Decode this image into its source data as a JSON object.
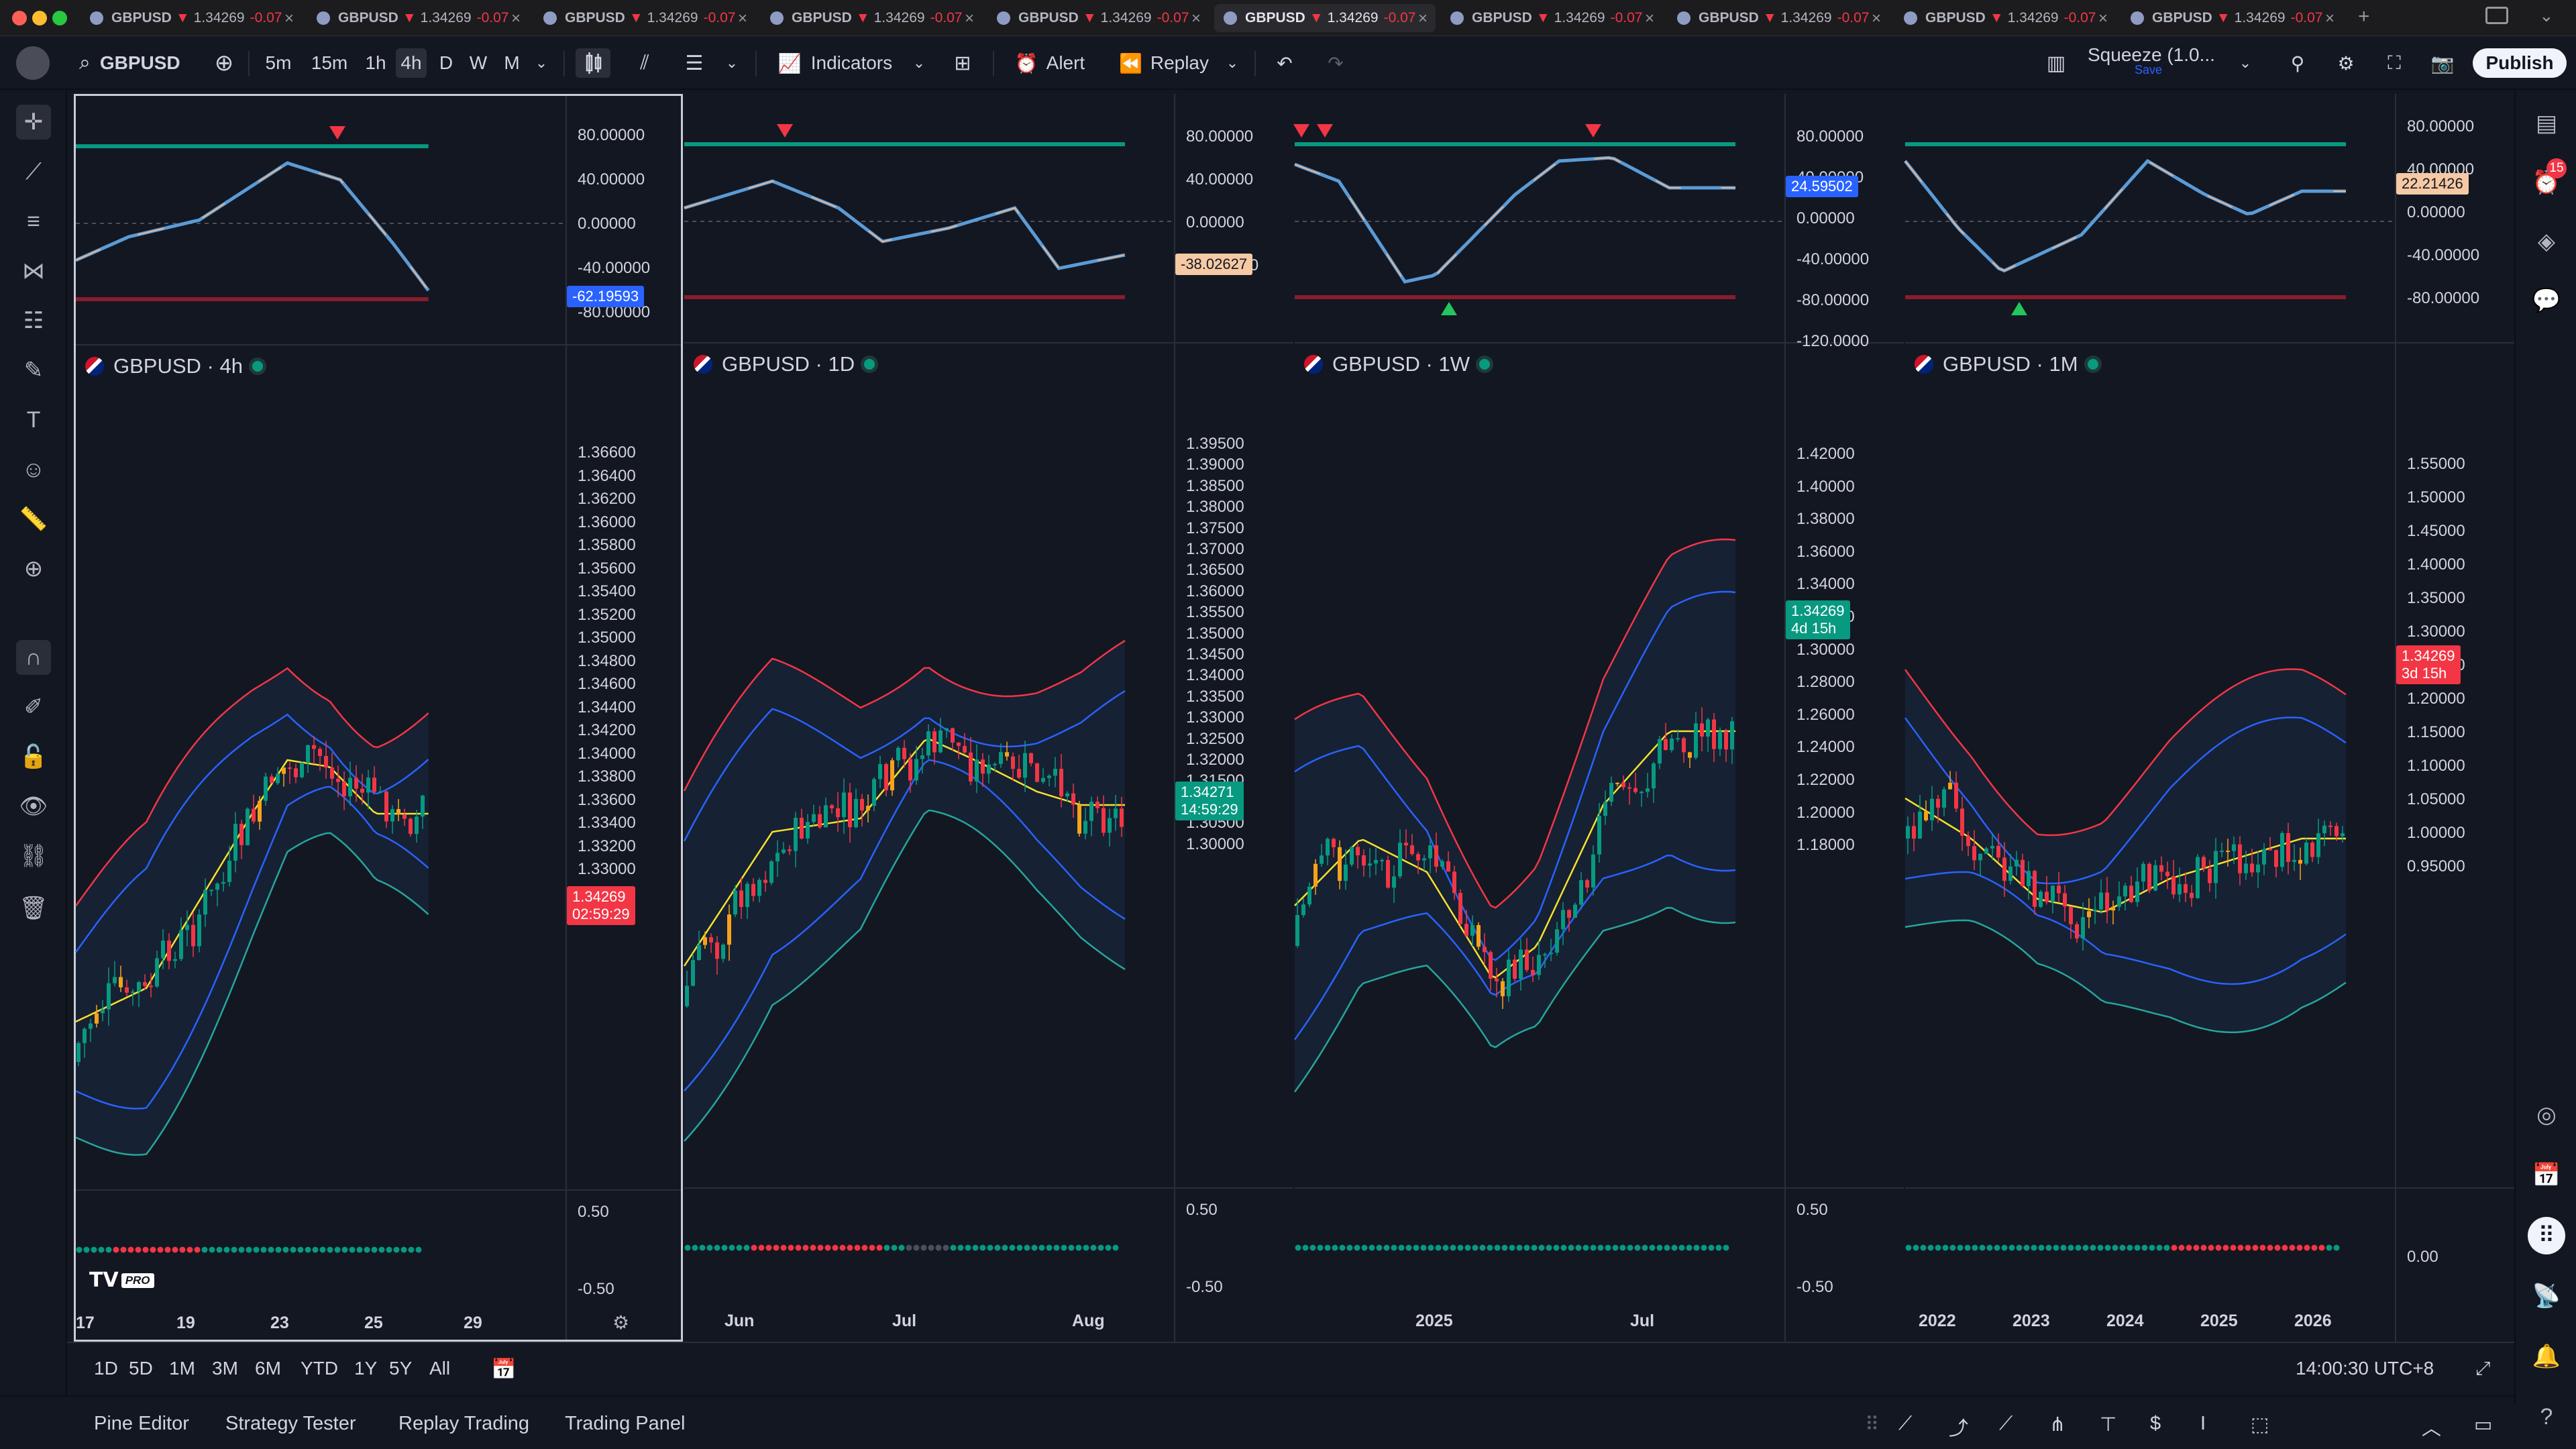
{
  "tabs": [
    {
      "symbol": "GBPUSD",
      "price": "1.34269",
      "change": "-0.07"
    },
    {
      "symbol": "GBPUSD",
      "price": "1.34269",
      "change": "-0.07"
    },
    {
      "symbol": "GBPUSD",
      "price": "1.34269",
      "change": "-0.07"
    },
    {
      "symbol": "GBPUSD",
      "price": "1.34269",
      "change": "-0.07"
    },
    {
      "symbol": "GBPUSD",
      "price": "1.34269",
      "change": "-0.07"
    },
    {
      "symbol": "GBPUSD",
      "price": "1.34269",
      "change": "-0.07"
    },
    {
      "symbol": "GBPUSD",
      "price": "1.34269",
      "change": "-0.07"
    },
    {
      "symbol": "GBPUSD",
      "price": "1.34269",
      "change": "-0.07"
    },
    {
      "symbol": "GBPUSD",
      "price": "1.34269",
      "change": "-0.07"
    },
    {
      "symbol": "GBPUSD",
      "price": "1.34269",
      "change": "-0.07"
    }
  ],
  "toolbar": {
    "symbol": "GBPUSD",
    "intervals": [
      "5m",
      "15m",
      "1h",
      "4h",
      "D",
      "W",
      "M"
    ],
    "active_interval": "4h",
    "indicators_label": "Indicators",
    "alert_label": "Alert",
    "replay_label": "Replay",
    "layout_name": "Squeeze (1.0...",
    "layout_sub": "Save",
    "publish_label": "Publish"
  },
  "rightbar": {
    "notif_count": "15"
  },
  "panes": [
    {
      "title": "GBPUSD · 4h",
      "osc_ticks": [
        "80.00000",
        "40.00000",
        "0.00000",
        "-40.00000",
        "-80.00000"
      ],
      "osc_tag": "-62.19593",
      "price_ticks": [
        "1.36600",
        "1.36400",
        "1.36200",
        "1.36000",
        "1.35800",
        "1.35600",
        "1.35400",
        "1.35200",
        "1.35000",
        "1.34800",
        "1.34600",
        "1.34400",
        "1.34200",
        "1.34000",
        "1.33800",
        "1.33600",
        "1.33400",
        "1.33200",
        "1.33000"
      ],
      "price_tag": "1.34269",
      "price_tag2": "02:59:29",
      "mom_ticks": [
        "0.50",
        "-0.50"
      ],
      "x_labels": [
        "17",
        "19",
        "23",
        "25",
        "29"
      ]
    },
    {
      "title": "GBPUSD · 1D",
      "osc_ticks": [
        "80.00000",
        "40.00000",
        "0.00000",
        "-80.00000"
      ],
      "osc_tag": "-38.02627",
      "price_ticks": [
        "1.39500",
        "1.39000",
        "1.38500",
        "1.38000",
        "1.37500",
        "1.37000",
        "1.36500",
        "1.36000",
        "1.35500",
        "1.35000",
        "1.34500",
        "1.34000",
        "1.33500",
        "1.33000",
        "1.32500",
        "1.32000",
        "1.31500",
        "1.31000",
        "1.30500",
        "1.30000"
      ],
      "price_tag": "1.34271",
      "price_tag2": "14:59:29",
      "mom_ticks": [
        "0.50",
        "-0.50"
      ],
      "x_labels": [
        "Jun",
        "Jul",
        "Aug"
      ]
    },
    {
      "title": "GBPUSD · 1W",
      "osc_ticks": [
        "80.00000",
        "40.00000",
        "0.00000",
        "-40.00000",
        "-80.00000",
        "-120.0000"
      ],
      "osc_tag": "24.59502",
      "price_ticks": [
        "1.42000",
        "1.40000",
        "1.38000",
        "1.36000",
        "1.34000",
        "1.32000",
        "1.30000",
        "1.28000",
        "1.26000",
        "1.24000",
        "1.22000",
        "1.20000",
        "1.18000"
      ],
      "price_tag": "1.34269",
      "price_tag2": "4d 15h",
      "mom_ticks": [
        "0.50",
        "-0.50"
      ],
      "x_labels": [
        "2025",
        "Jul"
      ]
    },
    {
      "title": "GBPUSD · 1M",
      "osc_ticks": [
        "80.00000",
        "40.00000",
        "0.00000",
        "-40.00000",
        "-80.00000"
      ],
      "osc_tag": "22.21426",
      "price_ticks": [
        "1.55000",
        "1.50000",
        "1.45000",
        "1.40000",
        "1.35000",
        "1.30000",
        "1.25000",
        "1.20000",
        "1.15000",
        "1.10000",
        "1.05000",
        "1.00000",
        "0.95000"
      ],
      "price_tag": "1.34269",
      "price_tag2": "3d 15h",
      "mom_ticks": [
        "0.00"
      ],
      "x_labels": [
        "2022",
        "2023",
        "2024",
        "2025",
        "2026"
      ]
    }
  ],
  "logo_text": "PRO",
  "bottombar": {
    "ranges": [
      "1D",
      "5D",
      "1M",
      "3M",
      "6M",
      "YTD",
      "1Y",
      "5Y",
      "All"
    ],
    "clock": "14:00:30 UTC+8"
  },
  "panelbar": {
    "tabs": [
      "Pine Editor",
      "Strategy Tester",
      "Replay Trading",
      "Trading Panel"
    ]
  },
  "colors": {
    "up": "#089981",
    "down": "#f23645",
    "band_top": "#f23645",
    "band_mid": "#2962ff",
    "basis": "#f7e22b",
    "band_low": "#26a69a",
    "osc_line": "#5b9bd5",
    "osc_up": "#e7b58f"
  }
}
